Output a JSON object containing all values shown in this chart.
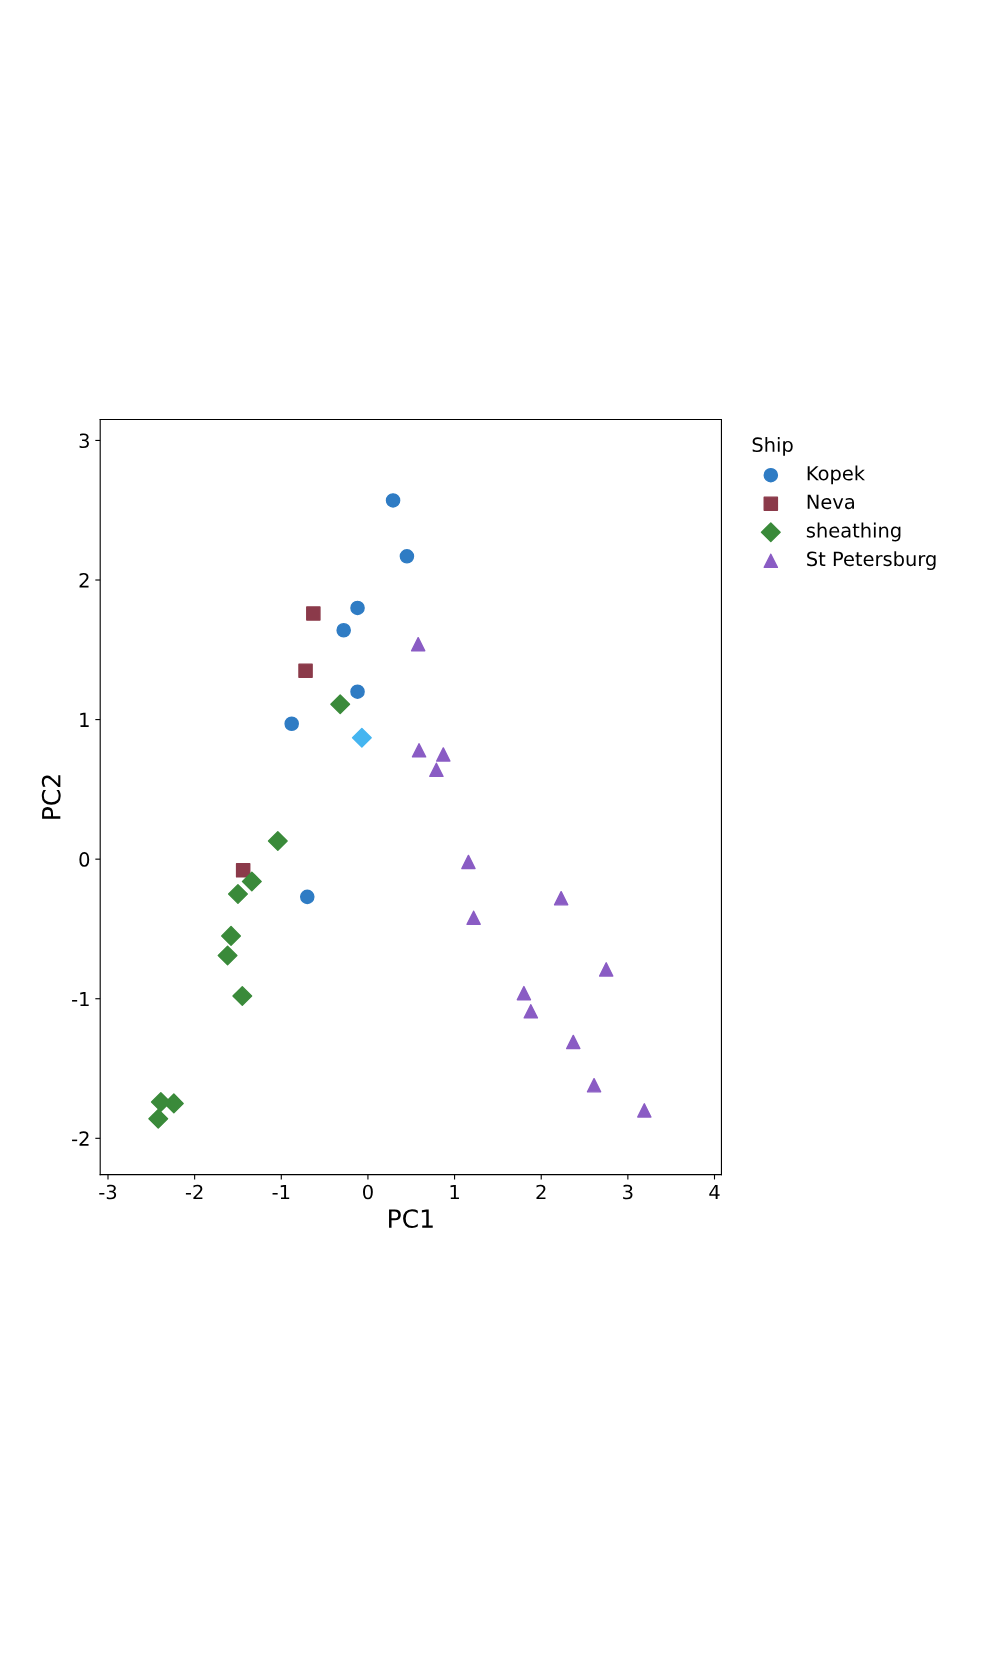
{
  "chart_data": {
    "type": "scatter",
    "xlabel": "PC1",
    "ylabel": "PC2",
    "legend_title": "Ship",
    "legend": "right",
    "grid": false,
    "xlim": [
      -3.09,
      4.08
    ],
    "ylim": [
      -2.26,
      3.15
    ],
    "xticks": [
      -3,
      -2,
      -1,
      0,
      1,
      2,
      3,
      4
    ],
    "yticks": [
      -2,
      -1,
      0,
      1,
      2,
      3
    ],
    "series": [
      {
        "name": "Kopek",
        "color": "#2f7cc4",
        "marker": "circle",
        "x": [
          0.29,
          0.45,
          -0.12,
          -0.28,
          -0.12,
          -0.88,
          -0.7
        ],
        "values": [
          2.57,
          2.17,
          1.8,
          1.64,
          1.2,
          0.97,
          -0.27
        ]
      },
      {
        "name": "Neva",
        "color": "#8b3a4a",
        "marker": "square",
        "x": [
          -0.63,
          -0.72,
          -1.44
        ],
        "values": [
          1.76,
          1.35,
          -0.08
        ]
      },
      {
        "name": "sheathing",
        "color": "#3a8a3a",
        "marker": "diamond",
        "x": [
          -0.32,
          -1.04,
          -1.34,
          -1.5,
          -1.58,
          -1.62,
          -1.45,
          -2.24,
          -2.39,
          -2.42
        ],
        "values": [
          1.11,
          0.13,
          -0.16,
          -0.25,
          -0.55,
          -0.69,
          -0.98,
          -1.75,
          -1.74,
          -1.86
        ]
      },
      {
        "name": "St Petersburg",
        "color": "#8a5cc4",
        "marker": "triangle",
        "x": [
          0.58,
          0.59,
          0.87,
          0.79,
          1.16,
          1.22,
          2.23,
          1.8,
          1.88,
          2.37,
          2.61,
          2.75,
          3.19
        ],
        "values": [
          1.54,
          0.78,
          0.75,
          0.64,
          -0.02,
          -0.42,
          -0.28,
          -0.96,
          -1.09,
          -1.31,
          -1.62,
          -0.79,
          -1.8
        ]
      },
      {
        "color": "#45b5f0",
        "marker": "diamond",
        "x": [
          -0.07
        ],
        "values": [
          0.87
        ]
      }
    ]
  }
}
